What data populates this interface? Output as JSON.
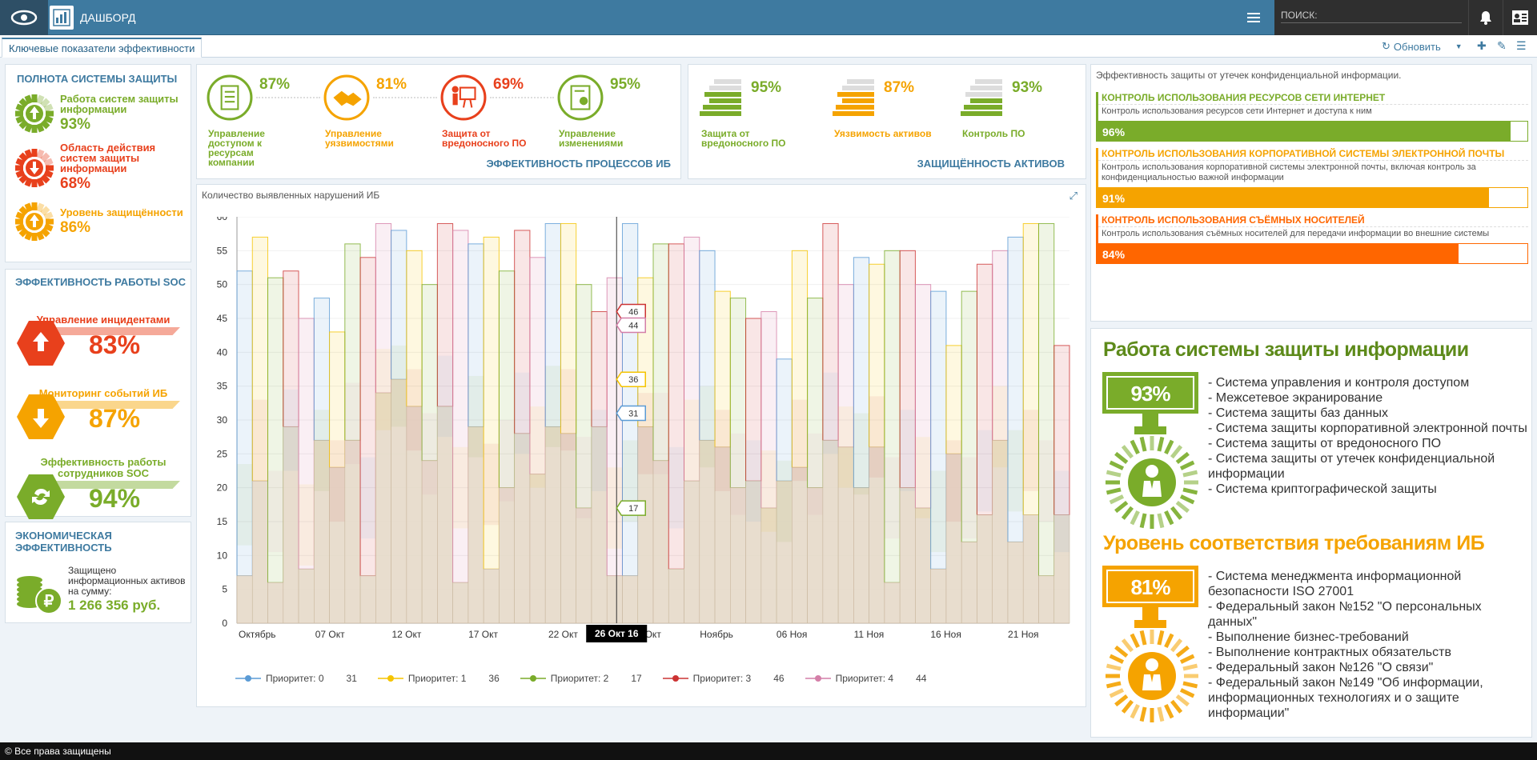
{
  "header": {
    "title": "ДАШБОРД",
    "search_placeholder": "ПОИСК:"
  },
  "tabs": {
    "active": "Ключевые показатели эффективности",
    "refresh_label": "Обновить"
  },
  "protection": {
    "title": "ПОЛНОТА СИСТЕМЫ ЗАЩИТЫ",
    "items": [
      {
        "label": "Работа систем защиты информации",
        "pct": "93%",
        "color": "#7aac2a"
      },
      {
        "label": "Область действия систем защиты информации",
        "pct": "68%",
        "color": "#e8401c"
      },
      {
        "label": "Уровень защищённости",
        "pct": "86%",
        "color": "#f5a300"
      }
    ]
  },
  "soc": {
    "title": "ЭФФЕКТИВНОСТЬ РАБОТЫ SOC",
    "items": [
      {
        "label": "Управление инцидентами",
        "pct": "83%",
        "color": "#e8401c"
      },
      {
        "label": "Мониторинг событий ИБ",
        "pct": "87%",
        "color": "#f5a300"
      },
      {
        "label": "Эффективность работы сотрудников SOC",
        "pct": "94%",
        "color": "#7aac2a"
      }
    ]
  },
  "econ": {
    "title": "ЭКОНОМИЧЕСКАЯ ЭФФЕКТИВНОСТЬ",
    "label": "Защищено информационных активов на сумму:",
    "value": "1 266 356 руб."
  },
  "processes": {
    "title": "ЭФФЕКТИВНОСТЬ ПРОЦЕССОВ ИБ",
    "items": [
      {
        "label": "Управление доступом к ресурсам компании",
        "pct": "87%",
        "color": "#7aac2a"
      },
      {
        "label": "Управление уязвимостями",
        "pct": "81%",
        "color": "#f5a300"
      },
      {
        "label": "Защита от вредоносного ПО",
        "pct": "69%",
        "color": "#e8401c"
      },
      {
        "label": "Управление изменениями",
        "pct": "95%",
        "color": "#7aac2a"
      }
    ]
  },
  "assets": {
    "title": "ЗАЩИЩЁННОСТЬ АКТИВОВ",
    "items": [
      {
        "label": "Защита от вредоносного ПО",
        "pct": "95%",
        "color": "#7aac2a"
      },
      {
        "label": "Уязвимость активов",
        "pct": "87%",
        "color": "#f5a300"
      },
      {
        "label": "Контроль ПО",
        "pct": "93%",
        "color": "#7aac2a"
      }
    ]
  },
  "leak": {
    "title": "Эффективность защиты от утечек конфиденциальной информации.",
    "items": [
      {
        "head": "КОНТРОЛЬ ИСПОЛЬЗОВАНИЯ РЕСУРСОВ СЕТИ ИНТЕРНЕТ",
        "desc": "Контроль использования ресурсов сети Интернет и доступа к ним",
        "pct": "96%",
        "value": 96,
        "color": "#7aac2a"
      },
      {
        "head": "КОНТРОЛЬ ИСПОЛЬЗОВАНИЯ КОРПОРАТИВНОЙ СИСТЕМЫ ЭЛЕКТРОННОЙ ПОЧТЫ",
        "desc": "Контроль использования корпоративной системы электронной почты, включая контроль за конфиденциальностью важной информации",
        "pct": "91%",
        "value": 91,
        "color": "#f5a300"
      },
      {
        "head": "КОНТРОЛЬ ИСПОЛЬЗОВАНИЯ СЪЁМНЫХ НОСИТЕЛЕЙ",
        "desc": "Контроль использования съёмных носителей для передачи информации во внешние системы",
        "pct": "84%",
        "value": 84,
        "color": "#ff6600"
      }
    ]
  },
  "sysinfo": {
    "title": "Работа системы защиты информации",
    "pct": "93%",
    "color": "#7aac2a",
    "lines": [
      "- Система управления и контроля доступом",
      "- Межсетевое экранирование",
      "- Система защиты баз данных",
      "- Система защиты корпоративной электронной почты",
      "- Система защиты от вредоносного ПО",
      "- Система защиты от утечек конфиденциальной информации",
      "- Система криптографической защиты"
    ]
  },
  "compliance": {
    "title": "Уровень соответствия требованиям ИБ",
    "pct": "81%",
    "color": "#f5a300",
    "lines": [
      "- Система менеджмента информационной безопасности ISO 27001",
      "- Федеральный закон №152 \"О персональных данных\"",
      "- Выполнение бизнес-требований",
      "- Выполнение контрактных обязательств",
      "- Федеральный закон №126 \"О связи\"",
      "- Федеральный закон №149 \"Об информации, информационных технологиях и о защите информации\""
    ]
  },
  "chart_data": {
    "type": "area",
    "title": "Количество выявленных нарушений ИБ",
    "ylim": [
      0,
      60
    ],
    "yticks": [
      0,
      5,
      10,
      15,
      20,
      25,
      30,
      35,
      40,
      45,
      50,
      55,
      60
    ],
    "xticks": [
      "Октябрь",
      "07 Окт",
      "12 Окт",
      "17 Окт",
      "22 Окт",
      "26 Окт 16",
      "Окт",
      "Ноябрь",
      "06 Ноя",
      "11 Ноя",
      "16 Ноя",
      "21 Ноя"
    ],
    "crosshair_label": "26 Окт 16",
    "series": [
      {
        "name": "Приоритет: 0",
        "current": 31,
        "color": "#5b9bd5"
      },
      {
        "name": "Приоритет: 1",
        "current": 36,
        "color": "#f5c400"
      },
      {
        "name": "Приоритет: 2",
        "current": 17,
        "color": "#7aac2a"
      },
      {
        "name": "Приоритет: 3",
        "current": 46,
        "color": "#cc3333"
      },
      {
        "name": "Приоритет: 4",
        "current": 44,
        "color": "#d47fa8"
      }
    ],
    "base_values": [
      7,
      21,
      6,
      29,
      8,
      27,
      23,
      27,
      7,
      34,
      36,
      32,
      24,
      32,
      6,
      29,
      8,
      20,
      28,
      22,
      29,
      28,
      17,
      29,
      7,
      7,
      29,
      24,
      8,
      21,
      27,
      26,
      20,
      21,
      17,
      21,
      23,
      20,
      27,
      26,
      20,
      26,
      6,
      20,
      17,
      8,
      25,
      12,
      16,
      27,
      12,
      16,
      7,
      16
    ],
    "top_values": [
      52,
      57,
      51,
      52,
      45,
      48,
      43,
      56,
      54,
      59,
      58,
      55,
      50,
      59,
      58,
      56,
      57,
      52,
      58,
      54,
      59,
      59,
      50,
      46,
      51,
      59,
      51,
      56,
      56,
      57,
      55,
      49,
      48,
      45,
      46,
      39,
      55,
      48,
      59,
      50,
      54,
      53,
      55,
      55,
      50,
      49,
      41,
      49,
      53,
      55,
      57,
      59,
      59,
      41
    ]
  },
  "footer": "© Все права защищены"
}
